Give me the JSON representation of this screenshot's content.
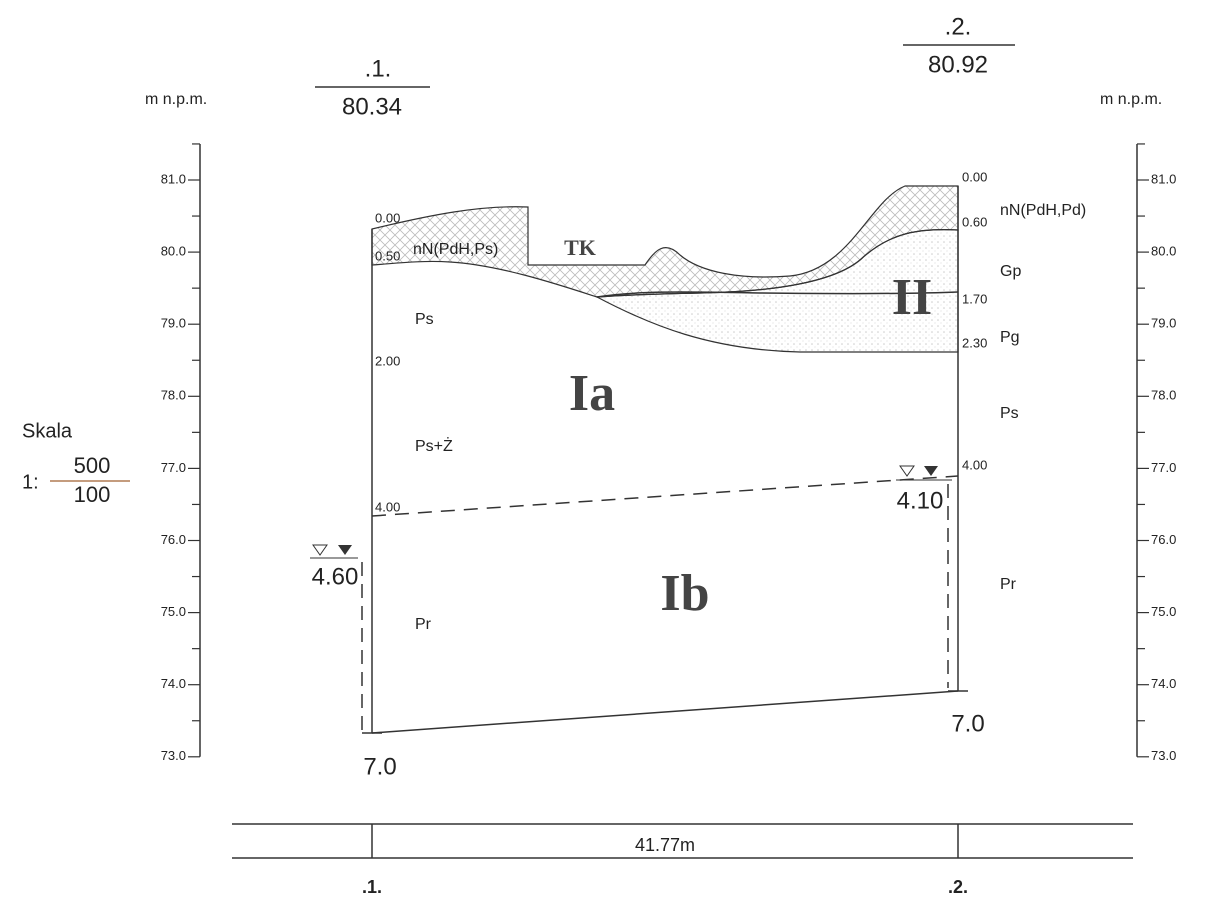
{
  "header": {
    "left_unit": "m n.p.m.",
    "right_unit": "m n.p.m."
  },
  "left_axis": {
    "ticks": [
      "81.0",
      "80.0",
      "79.0",
      "78.0",
      "77.0",
      "76.0",
      "75.0",
      "74.0",
      "73.0"
    ]
  },
  "right_axis": {
    "ticks": [
      "81.0",
      "80.0",
      "79.0",
      "78.0",
      "77.0",
      "76.0",
      "75.0",
      "74.0",
      "73.0"
    ]
  },
  "scale": {
    "label": "Skala",
    "prefix": "1:",
    "numerator": "500",
    "denominator": "100"
  },
  "boreholes": [
    {
      "name": ".1.",
      "elevation": "80.34",
      "final_depth": "7.0",
      "water_level": "4.60",
      "depths": [
        "0.00",
        "0.50",
        "2.00",
        "4.00"
      ],
      "soils": [
        "nN(PdH,Ps)",
        "Ps",
        "Ps+Ż",
        "Pr"
      ]
    },
    {
      "name": ".2.",
      "elevation": "80.92",
      "final_depth": "7.0",
      "water_level": "4.10",
      "depths": [
        "0.00",
        "0.60",
        "1.70",
        "2.30",
        "4.00"
      ],
      "soils": [
        "nN(PdH,Pd)",
        "Gp",
        "Pg",
        "Ps",
        "Pr"
      ]
    }
  ],
  "layers": {
    "tk": "TK",
    "ia": "Ia",
    "ib": "Ib",
    "ii": "II"
  },
  "distance": "41.77m",
  "footer": {
    "left": ".1.",
    "right": ".2."
  }
}
